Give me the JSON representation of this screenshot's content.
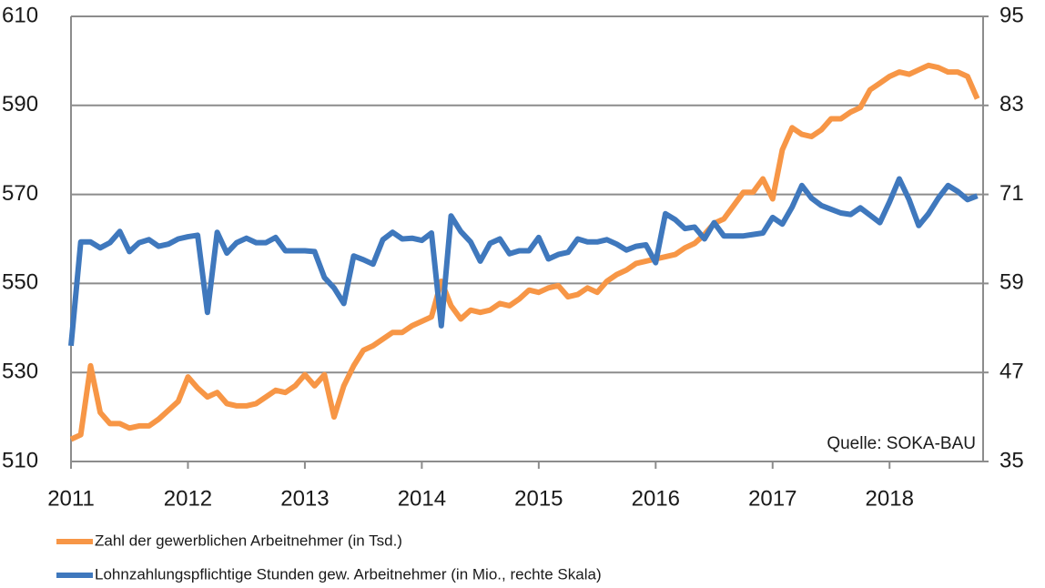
{
  "chart_data": {
    "type": "line",
    "annotation": "Quelle: SOKA-BAU",
    "x": [
      2011,
      2011.083,
      2011.167,
      2011.25,
      2011.333,
      2011.417,
      2011.5,
      2011.583,
      2011.667,
      2011.75,
      2011.833,
      2011.917,
      2012,
      2012.083,
      2012.167,
      2012.25,
      2012.333,
      2012.417,
      2012.5,
      2012.583,
      2012.667,
      2012.75,
      2012.833,
      2012.917,
      2013,
      2013.083,
      2013.167,
      2013.25,
      2013.333,
      2013.417,
      2013.5,
      2013.583,
      2013.667,
      2013.75,
      2013.833,
      2013.917,
      2014,
      2014.083,
      2014.167,
      2014.25,
      2014.333,
      2014.417,
      2014.5,
      2014.583,
      2014.667,
      2014.75,
      2014.833,
      2014.917,
      2015,
      2015.083,
      2015.167,
      2015.25,
      2015.333,
      2015.417,
      2015.5,
      2015.583,
      2015.667,
      2015.75,
      2015.833,
      2015.917,
      2016,
      2016.083,
      2016.167,
      2016.25,
      2016.333,
      2016.417,
      2016.5,
      2016.583,
      2016.667,
      2016.75,
      2016.833,
      2016.917,
      2017,
      2017.083,
      2017.167,
      2017.25,
      2017.333,
      2017.417,
      2017.5,
      2017.583,
      2017.667,
      2017.75,
      2017.833,
      2017.917,
      2018,
      2018.083,
      2018.167,
      2018.25,
      2018.333,
      2018.417,
      2018.5,
      2018.583,
      2018.667,
      2018.75
    ],
    "series": [
      {
        "name": "Zahl der gewerblichen Arbeitnehmer (in Tsd.)",
        "color": "#f79646",
        "axis": "y",
        "values": [
          515,
          516,
          531.5,
          521,
          518.5,
          518.5,
          517.5,
          518,
          518,
          519.5,
          521.5,
          523.5,
          529,
          526.5,
          524.5,
          525.5,
          523,
          522.5,
          522.5,
          523,
          524.5,
          526,
          525.5,
          527,
          529.5,
          527,
          529.5,
          520,
          527,
          531.5,
          535,
          536,
          537.5,
          539,
          539,
          540.5,
          541.5,
          542.5,
          550.5,
          545,
          542,
          544,
          543.5,
          544,
          545.5,
          545,
          546.5,
          548.5,
          548,
          549,
          549.5,
          547,
          547.5,
          549,
          548,
          550.5,
          552,
          553,
          554.5,
          555,
          555.5,
          556,
          556.5,
          558,
          559,
          561,
          563.5,
          564.5,
          567.5,
          570.5,
          570.5,
          573.5,
          569,
          580,
          585,
          583.5,
          583,
          584.5,
          587,
          587,
          588.5,
          589.5,
          593.5,
          595,
          596.5,
          597.5,
          597,
          598,
          599,
          598.5,
          597.5,
          597.5,
          596.5,
          591.5
        ]
      },
      {
        "name": "Lohnzahlungspflichtige Stunden gew. Arbeitnehmer (in Mio., rechte Skala)",
        "color": "#3f78bd",
        "axis": "y2",
        "values": [
          50.6,
          64.6,
          64.6,
          63.8,
          64.5,
          66,
          63.3,
          64.5,
          64.9,
          64,
          64.3,
          65,
          65.3,
          65.5,
          55.1,
          65.9,
          63.1,
          64.5,
          65.1,
          64.5,
          64.5,
          65.2,
          63.4,
          63.4,
          63.4,
          63.3,
          59.8,
          58.4,
          56.3,
          62.7,
          62.2,
          61.6,
          64.9,
          65.9,
          65,
          65.1,
          64.8,
          65.8,
          53.3,
          68.1,
          66,
          64.6,
          62,
          64.4,
          65,
          63,
          63.4,
          63.4,
          65.2,
          62.3,
          62.9,
          63.2,
          65,
          64.6,
          64.6,
          64.9,
          64.3,
          63.5,
          64,
          64.2,
          61.8,
          68.4,
          67.6,
          66.4,
          66.6,
          65,
          67.2,
          65.4,
          65.4,
          65.4,
          65.6,
          65.8,
          67.9,
          67,
          69.3,
          72.2,
          70.5,
          69.5,
          69,
          68.5,
          68.3,
          69.2,
          68.2,
          67.2,
          70,
          73.1,
          70.3,
          66.8,
          68.4,
          70.5,
          72.2,
          71.4,
          70.3,
          70.8
        ]
      }
    ],
    "xlim": [
      2011,
      2018.8
    ],
    "xticks": [
      2011,
      2012,
      2013,
      2014,
      2015,
      2016,
      2017,
      2018
    ],
    "ylim": [
      510,
      610
    ],
    "yticks": [
      510,
      530,
      550,
      570,
      590,
      610
    ],
    "y2lim": [
      35,
      95
    ],
    "y2ticks": [
      35,
      47,
      59,
      71,
      83,
      95
    ],
    "grid": true
  }
}
